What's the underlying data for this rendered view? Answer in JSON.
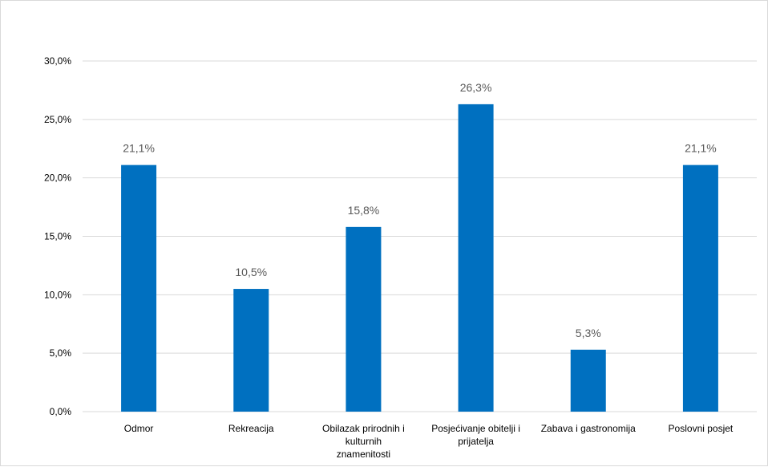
{
  "chart_data": {
    "type": "bar",
    "categories": [
      [
        "Odmor"
      ],
      [
        "Rekreacija"
      ],
      [
        "Obilazak prirodnih i",
        "kulturnih",
        "znamenitosti"
      ],
      [
        "Posjećivanje obitelji i",
        "prijatelja"
      ],
      [
        "Zabava i gastronomija"
      ],
      [
        "Poslovni posjet"
      ]
    ],
    "values": [
      21.1,
      10.5,
      15.8,
      26.3,
      5.3,
      21.1
    ],
    "data_labels": [
      "21,1%",
      "10,5%",
      "15,8%",
      "26,3%",
      "5,3%",
      "21,1%"
    ],
    "yticks": [
      {
        "value": 0,
        "label": "0,0%"
      },
      {
        "value": 5,
        "label": "5,0%"
      },
      {
        "value": 10,
        "label": "10,0%"
      },
      {
        "value": 15,
        "label": "15,0%"
      },
      {
        "value": 20,
        "label": "20,0%"
      },
      {
        "value": 25,
        "label": "25,0%"
      },
      {
        "value": 30,
        "label": "30,0%"
      }
    ],
    "ylim": [
      0,
      30
    ],
    "grid": true,
    "legend": "none",
    "title": "",
    "xlabel": "",
    "ylabel": "",
    "colors": {
      "bar": "#0070c0",
      "grid": "#d9d9d9",
      "data_label": "#595959"
    }
  }
}
